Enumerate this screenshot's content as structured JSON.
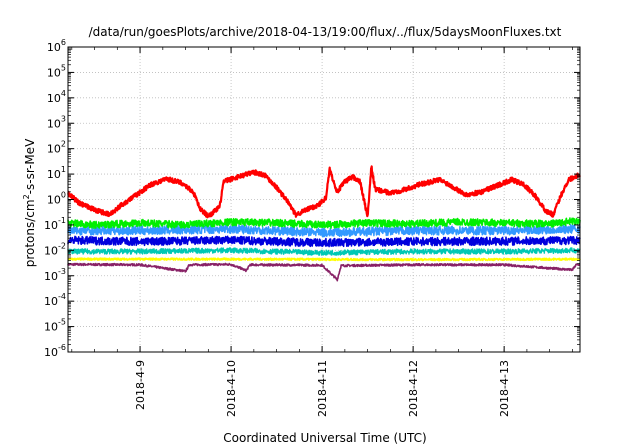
{
  "chart_data": {
    "type": "line",
    "title": "/data/run/goesPlots/archive/2018-04-13/19:00/flux/../flux/5daysMoonFluxes.txt",
    "xlabel": "Coordinated Universal Time (UTC)",
    "ylabel": "protons/cm2-s-sr-MeV",
    "ylabel_parts": {
      "base": "protons/cm",
      "sup": "2",
      "rest": "-s-sr-MeV"
    },
    "yscale": "log",
    "ylim_exp": [
      -6,
      6
    ],
    "ytick_labels": [
      {
        "exp": -6,
        "base": "10",
        "sup": "-6"
      },
      {
        "exp": -5,
        "base": "10",
        "sup": "-5"
      },
      {
        "exp": -4,
        "base": "10",
        "sup": "-4"
      },
      {
        "exp": -3,
        "base": "10",
        "sup": "-3"
      },
      {
        "exp": -2,
        "base": "10",
        "sup": "-2"
      },
      {
        "exp": -1,
        "base": "10",
        "sup": "-1"
      },
      {
        "exp": 0,
        "base": "10",
        "sup": "0"
      },
      {
        "exp": 1,
        "base": "10",
        "sup": "1"
      },
      {
        "exp": 2,
        "base": "10",
        "sup": "2"
      },
      {
        "exp": 3,
        "base": "10",
        "sup": "3"
      },
      {
        "exp": 4,
        "base": "10",
        "sup": "4"
      },
      {
        "exp": 5,
        "base": "10",
        "sup": "5"
      },
      {
        "exp": 6,
        "base": "10",
        "sup": "6"
      }
    ],
    "xlim": [
      "2018-04-08T05:00",
      "2018-04-13T20:00"
    ],
    "xticks": [
      {
        "date": "2018-04-09T00:00",
        "label": "2018-4-9"
      },
      {
        "date": "2018-04-10T00:00",
        "label": "2018-4-10"
      },
      {
        "date": "2018-04-11T00:00",
        "label": "2018-4-11"
      },
      {
        "date": "2018-04-12T00:00",
        "label": "2018-4-12"
      },
      {
        "date": "2018-04-13T00:00",
        "label": "2018-4-13"
      }
    ],
    "grid": true,
    "legend": "none",
    "series": [
      {
        "color": "#ff0000",
        "stroke_width": 2.2,
        "noise": 0.09,
        "points": [
          [
            "2018-04-08T05:00",
            1.8
          ],
          [
            "2018-04-08T08:00",
            0.7
          ],
          [
            "2018-04-08T12:00",
            0.4
          ],
          [
            "2018-04-08T16:00",
            0.25
          ],
          [
            "2018-04-08T19:00",
            0.6
          ],
          [
            "2018-04-08T23:00",
            1.5
          ],
          [
            "2018-04-09T03:00",
            4.0
          ],
          [
            "2018-04-09T07:00",
            6.5
          ],
          [
            "2018-04-09T11:00",
            4.5
          ],
          [
            "2018-04-09T14:00",
            2.0
          ],
          [
            "2018-04-09T16:00",
            0.4
          ],
          [
            "2018-04-09T18:00",
            0.22
          ],
          [
            "2018-04-09T21:00",
            0.5
          ],
          [
            "2018-04-09T22:00",
            5.0
          ],
          [
            "2018-04-10T02:00",
            8.0
          ],
          [
            "2018-04-10T06:00",
            12.0
          ],
          [
            "2018-04-10T09:00",
            9.0
          ],
          [
            "2018-04-10T12:00",
            3.0
          ],
          [
            "2018-04-10T15:00",
            0.8
          ],
          [
            "2018-04-10T17:00",
            0.25
          ],
          [
            "2018-04-10T20:00",
            0.4
          ],
          [
            "2018-04-10T23:00",
            0.6
          ],
          [
            "2018-04-11T01:00",
            1.2
          ],
          [
            "2018-04-11T02:00",
            15.0
          ],
          [
            "2018-04-11T04:00",
            2.0
          ],
          [
            "2018-04-11T06:00",
            5.0
          ],
          [
            "2018-04-11T08:00",
            8.0
          ],
          [
            "2018-04-11T10:00",
            5.0
          ],
          [
            "2018-04-11T12:00",
            0.2
          ],
          [
            "2018-04-11T13:00",
            20.0
          ],
          [
            "2018-04-11T14:00",
            2.5
          ],
          [
            "2018-04-11T18:00",
            1.8
          ],
          [
            "2018-04-11T22:00",
            2.5
          ],
          [
            "2018-04-12T02:00",
            4.0
          ],
          [
            "2018-04-12T07:00",
            6.0
          ],
          [
            "2018-04-12T10:00",
            3.5
          ],
          [
            "2018-04-12T14:00",
            1.5
          ],
          [
            "2018-04-12T18:00",
            2.0
          ],
          [
            "2018-04-12T22:00",
            3.5
          ],
          [
            "2018-04-13T02:00",
            6.0
          ],
          [
            "2018-04-13T05:00",
            4.0
          ],
          [
            "2018-04-13T08:00",
            1.5
          ],
          [
            "2018-04-13T11:00",
            0.35
          ],
          [
            "2018-04-13T13:00",
            0.25
          ],
          [
            "2018-04-13T15:00",
            1.5
          ],
          [
            "2018-04-13T17:00",
            6.0
          ],
          [
            "2018-04-13T20:00",
            10.0
          ]
        ]
      },
      {
        "color": "#00ee00",
        "stroke_width": 1.6,
        "noise": 0.14,
        "points": [
          [
            "2018-04-08T05:00",
            0.12
          ],
          [
            "2018-04-08T12:00",
            0.1
          ],
          [
            "2018-04-09T00:00",
            0.12
          ],
          [
            "2018-04-09T12:00",
            0.1
          ],
          [
            "2018-04-10T00:00",
            0.13
          ],
          [
            "2018-04-10T12:00",
            0.12
          ],
          [
            "2018-04-11T00:00",
            0.1
          ],
          [
            "2018-04-11T12:00",
            0.12
          ],
          [
            "2018-04-12T00:00",
            0.11
          ],
          [
            "2018-04-12T12:00",
            0.13
          ],
          [
            "2018-04-13T00:00",
            0.12
          ],
          [
            "2018-04-13T12:00",
            0.11
          ],
          [
            "2018-04-13T20:00",
            0.15
          ]
        ]
      },
      {
        "color": "#3399ff",
        "stroke_width": 1.5,
        "noise": 0.17,
        "points": [
          [
            "2018-04-08T05:00",
            0.06
          ],
          [
            "2018-04-09T00:00",
            0.06
          ],
          [
            "2018-04-10T00:00",
            0.07
          ],
          [
            "2018-04-11T00:00",
            0.05
          ],
          [
            "2018-04-12T00:00",
            0.06
          ],
          [
            "2018-04-13T00:00",
            0.06
          ],
          [
            "2018-04-13T20:00",
            0.07
          ]
        ]
      },
      {
        "color": "#0000dd",
        "stroke_width": 1.6,
        "noise": 0.16,
        "points": [
          [
            "2018-04-08T05:00",
            0.025
          ],
          [
            "2018-04-09T00:00",
            0.022
          ],
          [
            "2018-04-10T00:00",
            0.025
          ],
          [
            "2018-04-11T00:00",
            0.02
          ],
          [
            "2018-04-12T00:00",
            0.022
          ],
          [
            "2018-04-13T00:00",
            0.023
          ],
          [
            "2018-04-13T20:00",
            0.025
          ]
        ]
      },
      {
        "color": "#00c8b4",
        "stroke_width": 1.4,
        "noise": 0.1,
        "points": [
          [
            "2018-04-08T05:00",
            0.009
          ],
          [
            "2018-04-09T00:00",
            0.009
          ],
          [
            "2018-04-10T00:00",
            0.01
          ],
          [
            "2018-04-11T00:00",
            0.008
          ],
          [
            "2018-04-12T00:00",
            0.009
          ],
          [
            "2018-04-13T00:00",
            0.009
          ],
          [
            "2018-04-13T20:00",
            0.01
          ]
        ]
      },
      {
        "color": "#ffff00",
        "stroke_width": 1.6,
        "noise": 0.04,
        "points": [
          [
            "2018-04-08T05:00",
            0.0045
          ],
          [
            "2018-04-10T00:00",
            0.0045
          ],
          [
            "2018-04-12T00:00",
            0.0043
          ],
          [
            "2018-04-13T20:00",
            0.0045
          ]
        ]
      },
      {
        "color": "#882266",
        "stroke_width": 1.6,
        "noise": 0.04,
        "points": [
          [
            "2018-04-08T05:00",
            0.0028
          ],
          [
            "2018-04-09T00:00",
            0.0027
          ],
          [
            "2018-04-09T12:00",
            0.0015
          ],
          [
            "2018-04-09T13:00",
            0.0027
          ],
          [
            "2018-04-10T00:00",
            0.0028
          ],
          [
            "2018-04-10T04:00",
            0.0016
          ],
          [
            "2018-04-10T05:00",
            0.0027
          ],
          [
            "2018-04-11T00:00",
            0.0026
          ],
          [
            "2018-04-11T04:00",
            0.0007
          ],
          [
            "2018-04-11T05:00",
            0.0025
          ],
          [
            "2018-04-12T00:00",
            0.0027
          ],
          [
            "2018-04-13T00:00",
            0.0027
          ],
          [
            "2018-04-13T18:00",
            0.0017
          ],
          [
            "2018-04-13T19:00",
            0.0027
          ],
          [
            "2018-04-13T20:00",
            0.0028
          ]
        ]
      }
    ]
  }
}
